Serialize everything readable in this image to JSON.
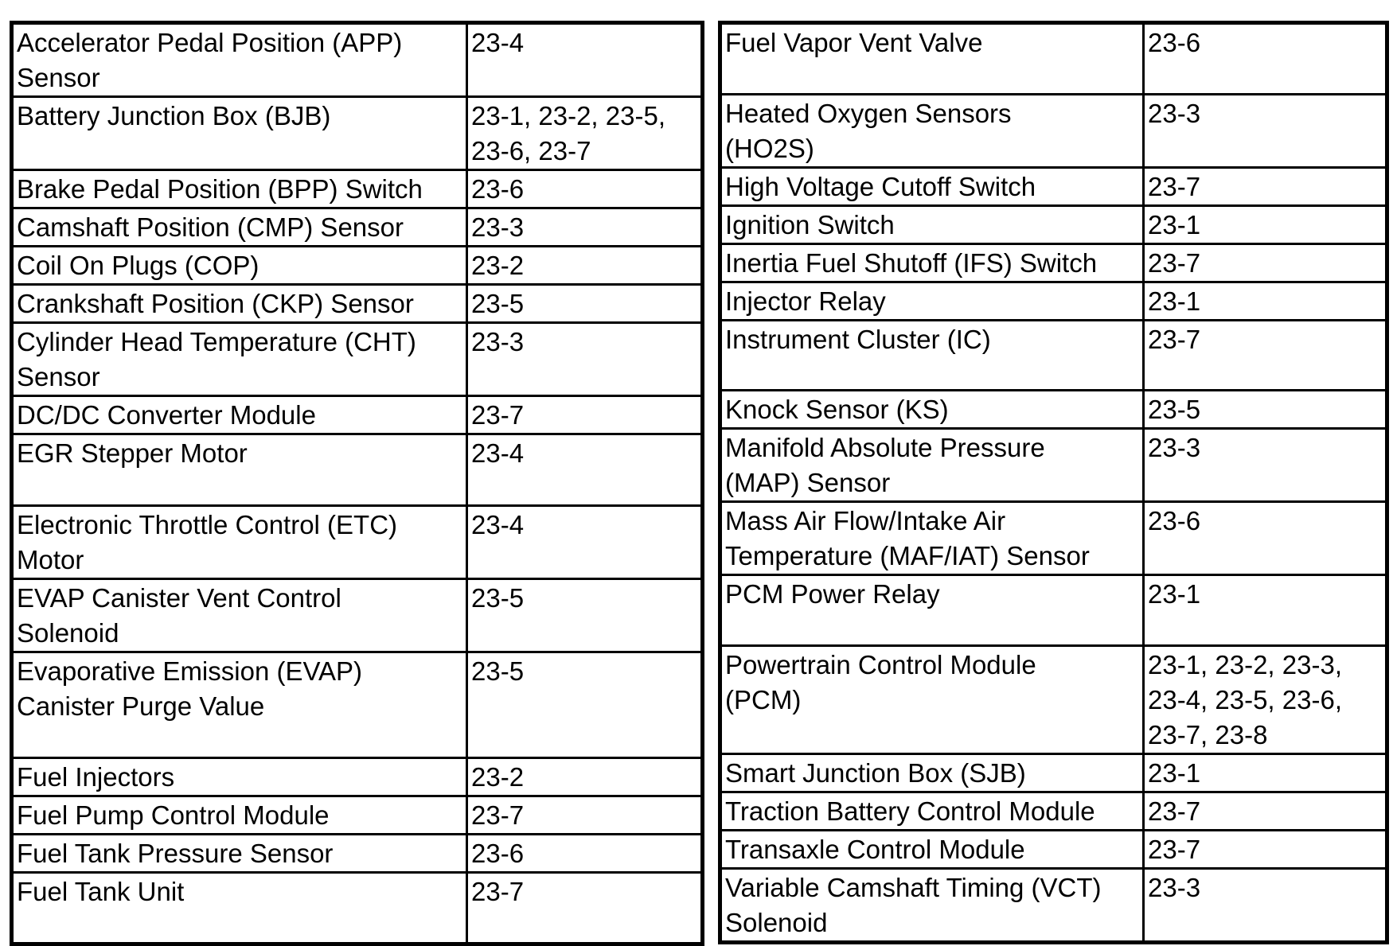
{
  "left_table": [
    {
      "component": "Accelerator Pedal Position (APP)\nSensor",
      "pages": "23-4"
    },
    {
      "component": "Battery Junction Box (BJB)",
      "pages": "23-1, 23-2, 23-5,\n23-6, 23-7"
    },
    {
      "component": "Brake Pedal Position (BPP) Switch",
      "pages": "23-6"
    },
    {
      "component": "Camshaft Position (CMP) Sensor",
      "pages": "23-3"
    },
    {
      "component": "Coil On Plugs (COP)",
      "pages": "23-2"
    },
    {
      "component": "Crankshaft Position (CKP) Sensor",
      "pages": "23-5"
    },
    {
      "component": "Cylinder Head Temperature (CHT)\nSensor",
      "pages": "23-3"
    },
    {
      "component": "DC/DC Converter Module",
      "pages": "23-7"
    },
    {
      "component": "EGR Stepper Motor",
      "pages": "23-4"
    },
    {
      "component": "Electronic Throttle Control (ETC)\nMotor",
      "pages": "23-4"
    },
    {
      "component": "EVAP Canister Vent Control\nSolenoid",
      "pages": "23-5"
    },
    {
      "component": "Evaporative Emission (EVAP)\nCanister Purge Value",
      "pages": "23-5"
    },
    {
      "component": "Fuel Injectors",
      "pages": "23-2"
    },
    {
      "component": "Fuel Pump Control Module",
      "pages": "23-7"
    },
    {
      "component": "Fuel Tank Pressure Sensor",
      "pages": "23-6"
    },
    {
      "component": "Fuel Tank Unit",
      "pages": "23-7"
    }
  ],
  "right_table": [
    {
      "component": "Fuel Vapor Vent Valve",
      "pages": "23-6"
    },
    {
      "component": "Heated Oxygen Sensors\n(HO2S)",
      "pages": "23-3"
    },
    {
      "component": "High Voltage Cutoff Switch",
      "pages": "23-7"
    },
    {
      "component": "Ignition Switch",
      "pages": "23-1"
    },
    {
      "component": "Inertia Fuel Shutoff (IFS) Switch",
      "pages": "23-7"
    },
    {
      "component": "Injector Relay",
      "pages": "23-1"
    },
    {
      "component": "Instrument Cluster (IC)",
      "pages": "23-7"
    },
    {
      "component": "Knock Sensor (KS)",
      "pages": "23-5"
    },
    {
      "component": "Manifold Absolute Pressure\n(MAP) Sensor",
      "pages": "23-3"
    },
    {
      "component": "Mass Air Flow/Intake Air\nTemperature (MAF/IAT) Sensor",
      "pages": "23-6"
    },
    {
      "component": "PCM Power Relay",
      "pages": "23-1"
    },
    {
      "component": "Powertrain Control Module\n(PCM)",
      "pages": "23-1, 23-2, 23-3,\n23-4, 23-5, 23-6,\n23-7, 23-8"
    },
    {
      "component": "Smart Junction Box (SJB)",
      "pages": "23-1"
    },
    {
      "component": "Traction Battery Control Module",
      "pages": "23-7"
    },
    {
      "component": "Transaxle Control Module",
      "pages": "23-7"
    },
    {
      "component": "Variable Camshaft Timing (VCT)\nSolenoid",
      "pages": "23-3"
    }
  ]
}
